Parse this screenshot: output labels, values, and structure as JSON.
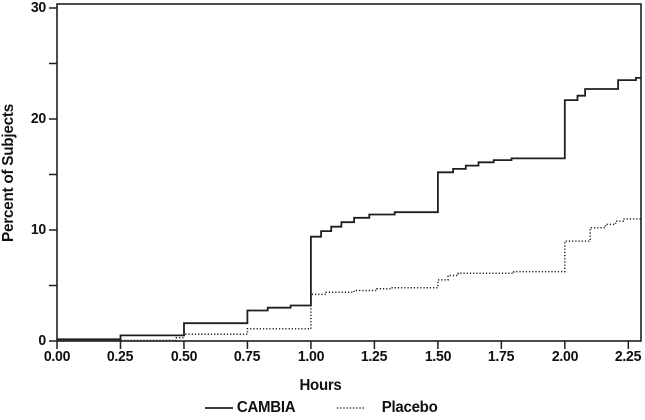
{
  "chart_data": {
    "type": "line",
    "subtype": "step",
    "title": "",
    "xlabel": "Hours",
    "ylabel": "Percent of Subjects",
    "xlim": [
      0,
      2.3
    ],
    "ylim": [
      0,
      30.36
    ],
    "grid": false,
    "frame": true,
    "legend_position": "bottom-center",
    "line_color": "#1f1f1f",
    "x_ticks": {
      "values": [
        0,
        0.25,
        0.5,
        0.75,
        1.0,
        1.25,
        1.5,
        1.75,
        2.0,
        2.25
      ],
      "labels": [
        "0.00",
        "0.25",
        "0.50",
        "0.75",
        "1.00",
        "1.25",
        "1.50",
        "1.75",
        "2.00",
        "2.25"
      ]
    },
    "y_ticks": {
      "major_values": [
        0,
        10,
        20,
        30
      ],
      "major_labels": [
        "0",
        "10",
        "20",
        "30"
      ],
      "minor_values": [
        5,
        15,
        25
      ]
    },
    "series": [
      {
        "name": "CAMBIA",
        "line_style": "solid",
        "points": [
          [
            0.0,
            0.15
          ],
          [
            0.25,
            0.5
          ],
          [
            0.5,
            1.6
          ],
          [
            0.75,
            2.75
          ],
          [
            0.83,
            3.0
          ],
          [
            0.92,
            3.2
          ],
          [
            1.0,
            9.4
          ],
          [
            1.04,
            9.9
          ],
          [
            1.08,
            10.3
          ],
          [
            1.12,
            10.7
          ],
          [
            1.17,
            11.1
          ],
          [
            1.23,
            11.4
          ],
          [
            1.33,
            11.6
          ],
          [
            1.5,
            15.2
          ],
          [
            1.56,
            15.5
          ],
          [
            1.61,
            15.8
          ],
          [
            1.66,
            16.1
          ],
          [
            1.72,
            16.3
          ],
          [
            1.79,
            16.45
          ],
          [
            2.0,
            21.7
          ],
          [
            2.05,
            22.1
          ],
          [
            2.08,
            22.7
          ],
          [
            2.21,
            23.5
          ],
          [
            2.28,
            23.7
          ]
        ]
      },
      {
        "name": "Placebo",
        "line_style": "dotted",
        "points": [
          [
            0.0,
            0.05
          ],
          [
            0.47,
            0.3
          ],
          [
            0.5,
            0.6
          ],
          [
            0.75,
            1.1
          ],
          [
            1.0,
            4.2
          ],
          [
            1.06,
            4.4
          ],
          [
            1.17,
            4.55
          ],
          [
            1.26,
            4.7
          ],
          [
            1.32,
            4.8
          ],
          [
            1.5,
            5.5
          ],
          [
            1.54,
            5.9
          ],
          [
            1.58,
            6.1
          ],
          [
            1.8,
            6.25
          ],
          [
            2.0,
            9.0
          ],
          [
            2.1,
            10.2
          ],
          [
            2.16,
            10.5
          ],
          [
            2.2,
            10.8
          ],
          [
            2.23,
            11.0
          ]
        ]
      }
    ]
  }
}
